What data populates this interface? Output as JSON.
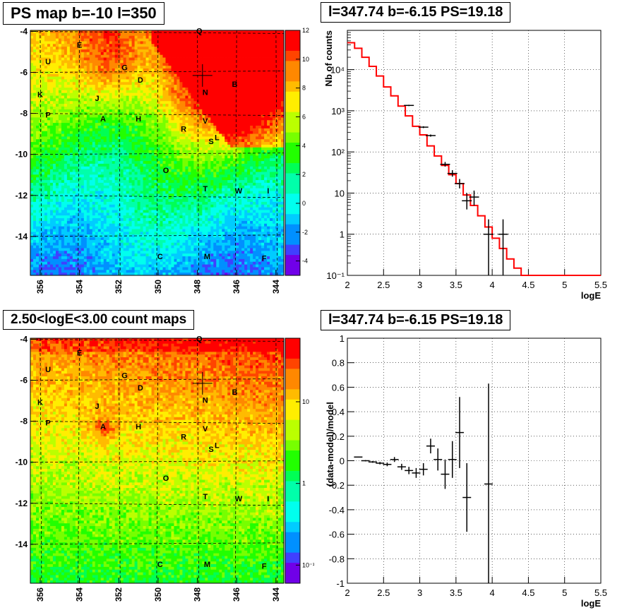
{
  "panels": [
    {
      "id": "ps-map",
      "title": "PS map b=-10 l=350",
      "type": "heatmap",
      "x_ticks": [
        "356",
        "354",
        "352",
        "350",
        "348",
        "346",
        "344"
      ],
      "y_ticks": [
        "-4",
        "-6",
        "-8",
        "-10",
        "-12",
        "-14"
      ],
      "colorbar_ticks": [
        "12",
        "10",
        "8",
        "6",
        "4",
        "2",
        "0",
        "-2",
        "-4"
      ],
      "colorbar_range": [
        -5,
        12
      ],
      "source_labels": [
        "Q",
        "E",
        "U",
        "G",
        "D",
        "B",
        "K",
        "J",
        "N",
        "P",
        "A",
        "H",
        "V",
        "R",
        "S",
        "L",
        "O",
        "T",
        "W",
        "I",
        "C",
        "M",
        "F"
      ]
    },
    {
      "id": "count-map",
      "title": "2.50<logE<3.00 count maps",
      "type": "heatmap",
      "x_ticks": [
        "356",
        "354",
        "352",
        "350",
        "348",
        "346",
        "344"
      ],
      "y_ticks": [
        "-4",
        "-6",
        "-8",
        "-10",
        "-12",
        "-14"
      ],
      "colorbar_ticks": [
        "10",
        "1",
        "10⁻¹"
      ],
      "colorbar_range": [
        0.06,
        60
      ],
      "source_labels": [
        "Q",
        "E",
        "U",
        "G",
        "D",
        "B",
        "K",
        "J",
        "N",
        "P",
        "A",
        "H",
        "V",
        "R",
        "S",
        "L",
        "O",
        "T",
        "W",
        "I",
        "C",
        "M",
        "F"
      ]
    }
  ],
  "spectrum": {
    "title": "l=347.74 b=-6.15 PS=19.18",
    "xlabel": "logE",
    "ylabel": "Nb of counts",
    "x_ticks": [
      "2",
      "2.5",
      "3",
      "3.5",
      "4",
      "4.5",
      "5",
      "5.5"
    ],
    "y_ticks": [
      "10⁻¹",
      "1",
      "10",
      "10²",
      "10³",
      "10⁴"
    ],
    "xlim": [
      2,
      5.5
    ],
    "ylim": [
      0.1,
      90000
    ],
    "log_y": true,
    "grid": true
  },
  "residuals": {
    "title": "l=347.74 b=-6.15 PS=19.18",
    "xlabel": "logE",
    "ylabel": "(data-model)/model",
    "x_ticks": [
      "2",
      "2.5",
      "3",
      "3.5",
      "4",
      "4.5",
      "5",
      "5.5"
    ],
    "y_ticks": [
      "1",
      "0.8",
      "0.6",
      "0.4",
      "0.2",
      "0",
      "-0.2",
      "-0.4",
      "-0.6",
      "-0.8",
      "-1"
    ],
    "xlim": [
      2,
      5.5
    ],
    "ylim": [
      -1,
      1
    ],
    "grid": true
  },
  "chart_data": [
    {
      "type": "line",
      "series": [
        {
          "style": "step",
          "color": "#ff0000",
          "x": [
            2.0,
            2.1,
            2.2,
            2.3,
            2.4,
            2.5,
            2.6,
            2.7,
            2.8,
            2.9,
            3.0,
            3.1,
            3.2,
            3.3,
            3.4,
            3.5,
            3.6,
            3.7,
            3.8,
            3.9,
            4.0,
            4.1,
            4.2,
            4.3,
            4.4,
            4.5,
            5.5
          ],
          "values": [
            45000,
            33000,
            20000,
            12000,
            7000,
            3800,
            2300,
            1300,
            750,
            420,
            260,
            140,
            80,
            47,
            28,
            17,
            9,
            5,
            2.8,
            1.5,
            0.8,
            0.45,
            0.25,
            0.15,
            0.1,
            0.1,
            0.1
          ]
        },
        {
          "style": "points",
          "color": "#000000",
          "x": [
            2.85,
            3.05,
            3.15,
            3.35,
            3.45,
            3.55,
            3.65,
            3.75,
            3.95,
            4.15
          ],
          "values": [
            1350,
            400,
            250,
            50,
            30,
            17,
            6.5,
            8,
            1,
            1
          ],
          "ylow": [
            1300,
            380,
            235,
            44,
            25,
            13,
            4,
            5,
            0.1,
            0.1
          ],
          "yhigh": [
            1400,
            420,
            265,
            57,
            36,
            22,
            10,
            11.5,
            2.3,
            2.3
          ]
        }
      ]
    },
    {
      "type": "scatter",
      "x": [
        2.15,
        2.25,
        2.35,
        2.45,
        2.55,
        2.65,
        2.75,
        2.85,
        2.95,
        3.05,
        3.15,
        3.25,
        3.35,
        3.45,
        3.55,
        3.65,
        3.95
      ],
      "values": [
        0.03,
        0.0,
        -0.01,
        -0.02,
        -0.03,
        0.01,
        -0.05,
        -0.08,
        -0.1,
        -0.07,
        0.12,
        0.01,
        -0.11,
        0.01,
        0.23,
        -0.3,
        -0.19
      ],
      "err": [
        0.003,
        0.005,
        0.007,
        0.01,
        0.015,
        0.02,
        0.025,
        0.03,
        0.04,
        0.05,
        0.06,
        0.09,
        0.12,
        0.15,
        0.29,
        0.28,
        0.82
      ]
    }
  ]
}
